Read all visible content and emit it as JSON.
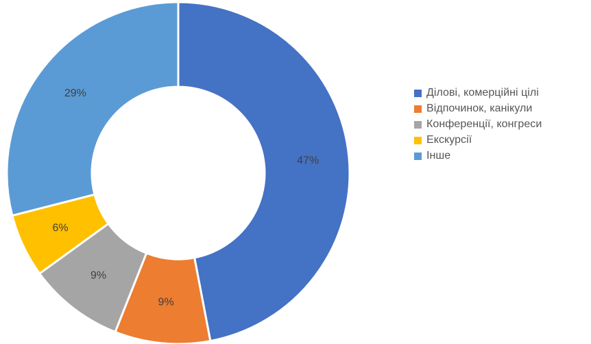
{
  "chart_data": {
    "type": "pie",
    "variant": "donut",
    "categories": [
      "Ділові, комерційні цілі",
      "Відпочинок, канікули",
      "Конференції, конгреси",
      "Екскурсії",
      "Інше"
    ],
    "values": [
      47,
      9,
      9,
      6,
      29
    ],
    "data_labels": [
      "47%",
      "9%",
      "9%",
      "6%",
      "29%"
    ],
    "colors": [
      "#4472C4",
      "#ED7D31",
      "#A5A5A5",
      "#FFC000",
      "#5B9BD5"
    ],
    "legend_position": "right",
    "start_angle": "top",
    "direction": "clockwise",
    "title": "",
    "xlabel": "",
    "ylabel": ""
  }
}
